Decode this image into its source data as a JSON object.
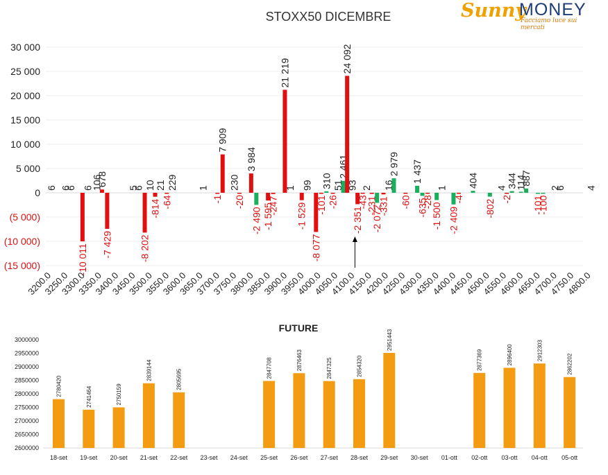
{
  "logo": {
    "brand_sunny": "Sunny",
    "brand_money": "MONEY",
    "tagline": "Facciamo luce sui mercati"
  },
  "colors": {
    "call": "#e01010",
    "put": "#1aaf5d",
    "future": "#f39c12",
    "negative_text": "#e01010"
  },
  "chart_data": [
    {
      "type": "bar",
      "title": "STOXX50 DICEMBRE",
      "ylim": [
        -15000,
        30000
      ],
      "yticks": [
        {
          "v": 30000,
          "label": "30 000"
        },
        {
          "v": 25000,
          "label": "25 000"
        },
        {
          "v": 20000,
          "label": "20 000"
        },
        {
          "v": 15000,
          "label": "15 000"
        },
        {
          "v": 10000,
          "label": "10 000"
        },
        {
          "v": 5000,
          "label": "5 000"
        },
        {
          "v": 0,
          "label": "0"
        },
        {
          "v": -5000,
          "label": "(5 000)"
        },
        {
          "v": -10000,
          "label": "(10 000)"
        },
        {
          "v": -15000,
          "label": "(15 000)"
        }
      ],
      "categories": [
        "3200.0",
        "3250.0",
        "3300.0",
        "3350.0",
        "3400.0",
        "3450.0",
        "3500.0",
        "3550.0",
        "3600.0",
        "3650.0",
        "3700.0",
        "3750.0",
        "3800.0",
        "3850.0",
        "3900.0",
        "3950.0",
        "4000.0",
        "4050.0",
        "4100.0",
        "4150.0",
        "4200.0",
        "4250.0",
        "4300.0",
        "4350.0",
        "4400.0",
        "4450.0",
        "4500.0",
        "4550.0",
        "4600.0",
        "4650.0",
        "4700.0",
        "4750.0",
        "4800.0"
      ],
      "bars": [
        {
          "x": "3200.0",
          "label": "6"
        },
        {
          "x": "3250.0",
          "label": "6"
        },
        {
          "x": "3250.0",
          "label": "6"
        },
        {
          "x": "3300.0",
          "label": "-10 011",
          "value": -10011,
          "color": "call"
        },
        {
          "x": "3300.0",
          "label": "6"
        },
        {
          "x": "3350.0",
          "label": "106"
        },
        {
          "x": "3350.0",
          "label": "678",
          "value": 678,
          "color": "call"
        },
        {
          "x": "3350.0",
          "label": "-7 429",
          "value": -7429,
          "color": "call"
        },
        {
          "x": "3450.0",
          "label": "5"
        },
        {
          "x": "3450.0",
          "label": "6"
        },
        {
          "x": "3500.0",
          "label": "-8 202",
          "value": -8202,
          "color": "call"
        },
        {
          "x": "3500.0",
          "label": "10"
        },
        {
          "x": "3500.0",
          "label": "-814",
          "value": -814,
          "color": "call"
        },
        {
          "x": "3500.0",
          "label": "21"
        },
        {
          "x": "3550.0",
          "label": "-64",
          "value": -64,
          "color": "call"
        },
        {
          "x": "3550.0",
          "label": "229"
        },
        {
          "x": "3650.0",
          "label": "1"
        },
        {
          "x": "3700.0",
          "label": "-1",
          "value": -1,
          "color": "call"
        },
        {
          "x": "3700.0",
          "label": "7 909",
          "value": 7909,
          "color": "call"
        },
        {
          "x": "3750.0",
          "label": "230"
        },
        {
          "x": "3750.0",
          "label": "-20",
          "value": -20,
          "color": "call"
        },
        {
          "x": "3800.0",
          "label": "3 984",
          "value": 3984,
          "color": "call"
        },
        {
          "x": "3800.0",
          "label": "-2 490",
          "value": -2490,
          "color": "put"
        },
        {
          "x": "3850.0",
          "label": "-1 595",
          "value": -1595,
          "color": "call"
        },
        {
          "x": "3850.0",
          "label": "-247",
          "value": -247,
          "color": "call"
        },
        {
          "x": "3900.0",
          "label": "21 219",
          "value": 21219,
          "color": "call"
        },
        {
          "x": "3900.0",
          "label": "1"
        },
        {
          "x": "3950.0",
          "label": "-1 529",
          "value": -1529,
          "color": "call"
        },
        {
          "x": "3950.0",
          "label": "99"
        },
        {
          "x": "4000.0",
          "label": "-8 077",
          "value": -8077,
          "color": "call"
        },
        {
          "x": "4000.0",
          "label": "-101",
          "value": -101,
          "color": "call"
        },
        {
          "x": "4000.0",
          "label": "310",
          "value": 310,
          "color": "put"
        },
        {
          "x": "4050.0",
          "label": "-26",
          "value": -26,
          "color": "call"
        },
        {
          "x": "4050.0",
          "label": "51"
        },
        {
          "x": "4050.0",
          "label": "2 461",
          "value": 2461,
          "color": "put"
        },
        {
          "x": "4100.0",
          "label": "24 092",
          "value": 24092,
          "color": "call"
        },
        {
          "x": "4100.0",
          "label": "93"
        },
        {
          "x": "4100.0",
          "label": "-2 351",
          "value": -2351,
          "color": "call"
        },
        {
          "x": "4100.0",
          "label": "-43",
          "value": -43,
          "color": "call"
        },
        {
          "x": "4150.0",
          "label": "2"
        },
        {
          "x": "4150.0",
          "label": "-231",
          "value": -231,
          "color": "call"
        },
        {
          "x": "4150.0",
          "label": "-2 072",
          "value": -2072,
          "color": "put"
        },
        {
          "x": "4200.0",
          "label": "-331",
          "value": -331,
          "color": "call"
        },
        {
          "x": "4200.0",
          "label": "16"
        },
        {
          "x": "4200.0",
          "label": "2 979",
          "value": 2979,
          "color": "put"
        },
        {
          "x": "4250.0",
          "label": "-60",
          "value": -60,
          "color": "call"
        },
        {
          "x": "4300.0",
          "label": "1 437",
          "value": 1437,
          "color": "put"
        },
        {
          "x": "4300.0",
          "label": "-635",
          "value": -635,
          "color": "put"
        },
        {
          "x": "4300.0",
          "label": "-28",
          "value": -28,
          "color": "call"
        },
        {
          "x": "4350.0",
          "label": "-1 500",
          "value": -1500,
          "color": "put"
        },
        {
          "x": "4350.0",
          "label": "1"
        },
        {
          "x": "4400.0",
          "label": "-2 409",
          "value": -2409,
          "color": "put"
        },
        {
          "x": "4400.0",
          "label": "-4",
          "value": -4,
          "color": "call"
        },
        {
          "x": "4450.0",
          "label": "404",
          "value": 404,
          "color": "put"
        },
        {
          "x": "4500.0",
          "label": "-802",
          "value": -802,
          "color": "put"
        },
        {
          "x": "4550.0",
          "label": "4"
        },
        {
          "x": "4550.0",
          "label": "-2",
          "value": -2,
          "color": "call"
        },
        {
          "x": "4550.0",
          "label": "344",
          "value": 344,
          "color": "put"
        },
        {
          "x": "4600.0",
          "label": "114",
          "value": 114,
          "color": "put"
        },
        {
          "x": "4600.0",
          "label": "887",
          "value": 887,
          "color": "put"
        },
        {
          "x": "4650.0",
          "label": "-101",
          "value": -101,
          "color": "put"
        },
        {
          "x": "4650.0",
          "label": "-100",
          "value": -100,
          "color": "put"
        },
        {
          "x": "4700.0",
          "label": "2"
        },
        {
          "x": "4700.0",
          "label": "6"
        },
        {
          "x": "4800.0",
          "label": "4"
        }
      ],
      "marker": {
        "type": "arrow",
        "x": "4100.0"
      }
    },
    {
      "type": "bar",
      "title": "FUTURE",
      "ylim": [
        2600000,
        3000000
      ],
      "yticks": [
        3000000,
        2950000,
        2900000,
        2850000,
        2800000,
        2750000,
        2700000,
        2650000,
        2600000
      ],
      "categories": [
        "18-set",
        "19-set",
        "20-set",
        "21-set",
        "22-set",
        "23-set",
        "24-set",
        "25-set",
        "26-set",
        "27-set",
        "28-set",
        "29-set",
        "30-set",
        "01-ott",
        "02-ott",
        "03-ott",
        "04-ott",
        "05-ott"
      ],
      "values": [
        2780420,
        2741464,
        2750159,
        2839144,
        2805695,
        null,
        null,
        2847708,
        2876463,
        2847325,
        2854320,
        2951443,
        null,
        null,
        2877369,
        2896400,
        2912303,
        2862202
      ]
    }
  ]
}
